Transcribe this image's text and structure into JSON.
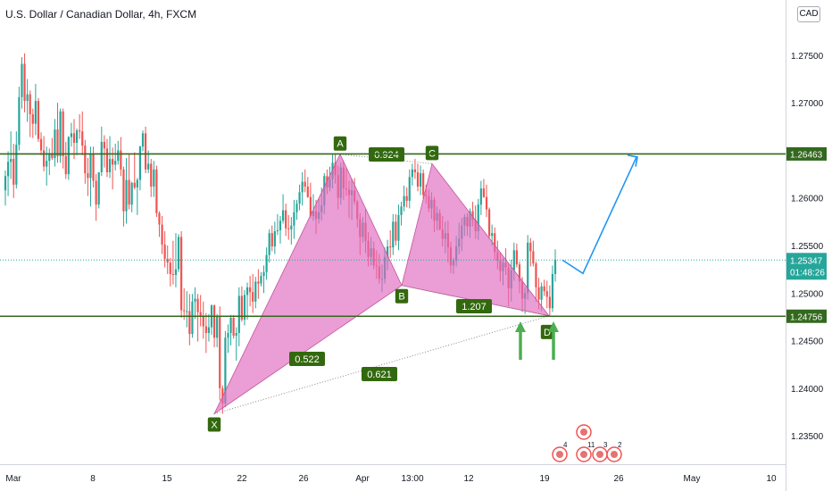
{
  "header": {
    "title": "U.S. Dollar / Canadian Dollar, 4h, FXCM",
    "currency_button": "CAD"
  },
  "chart_data": {
    "type": "candlestick",
    "symbol": "USDCAD",
    "timeframe": "4h",
    "y_axis": {
      "ticks": [
        "1.27500",
        "1.27000",
        "1.26000",
        "1.25500",
        "1.25000",
        "1.24500",
        "1.24000",
        "1.23500"
      ]
    },
    "x_axis": {
      "ticks": [
        "Mar",
        "8",
        "15",
        "22",
        "26",
        "Apr",
        "13:00",
        "12",
        "19",
        "26",
        "May",
        "10"
      ]
    },
    "price_labels": {
      "upper_level": "1.26463",
      "current_price": "1.25347",
      "countdown": "01:48:26",
      "lower_level": "1.24756"
    },
    "levels": [
      1.26463,
      1.24756
    ],
    "current_price": 1.25347,
    "harmonic_pattern": {
      "points": [
        {
          "label": "X",
          "price": 1.2373
        },
        {
          "label": "A",
          "price": 1.2646
        },
        {
          "label": "B",
          "price": 1.2508
        },
        {
          "label": "C",
          "price": 1.2636
        },
        {
          "label": "D",
          "price": 1.2476
        }
      ],
      "ratios": [
        "0.522",
        "0.924",
        "1.207",
        "0.621"
      ]
    },
    "candles": [
      [
        1.2608,
        1.2629,
        1.2592,
        1.2623
      ],
      [
        1.2623,
        1.2649,
        1.2602,
        1.2638
      ],
      [
        1.2638,
        1.267,
        1.262,
        1.2641
      ],
      [
        1.2641,
        1.2657,
        1.26,
        1.2614
      ],
      [
        1.2614,
        1.267,
        1.261,
        1.2656
      ],
      [
        1.2656,
        1.2717,
        1.265,
        1.2706
      ],
      [
        1.2706,
        1.2748,
        1.2694,
        1.2741
      ],
      [
        1.2741,
        1.2752,
        1.269,
        1.2702
      ],
      [
        1.2702,
        1.2725,
        1.268,
        1.2709
      ],
      [
        1.2709,
        1.2713,
        1.2664,
        1.2688
      ],
      [
        1.2688,
        1.2694,
        1.2663,
        1.2678
      ],
      [
        1.2678,
        1.272,
        1.2666,
        1.2702
      ],
      [
        1.2702,
        1.2705,
        1.2659,
        1.2662
      ],
      [
        1.2662,
        1.2669,
        1.2645,
        1.265
      ],
      [
        1.265,
        1.2665,
        1.2628,
        1.2633
      ],
      [
        1.2633,
        1.2654,
        1.2613,
        1.2639
      ],
      [
        1.2639,
        1.2652,
        1.2624,
        1.2646
      ],
      [
        1.2646,
        1.2663,
        1.264,
        1.2642
      ],
      [
        1.2642,
        1.2683,
        1.2633,
        1.2672
      ],
      [
        1.2672,
        1.27,
        1.2637,
        1.2644
      ],
      [
        1.2644,
        1.2694,
        1.2637,
        1.2691
      ],
      [
        1.2691,
        1.2694,
        1.2631,
        1.2644
      ],
      [
        1.2644,
        1.2659,
        1.262,
        1.2625
      ],
      [
        1.2625,
        1.2665,
        1.2619,
        1.2664
      ],
      [
        1.2664,
        1.2679,
        1.2654,
        1.2668
      ],
      [
        1.2668,
        1.2683,
        1.2641,
        1.2658
      ],
      [
        1.2658,
        1.2673,
        1.2645,
        1.2671
      ],
      [
        1.2671,
        1.2688,
        1.2662,
        1.267
      ],
      [
        1.267,
        1.2691,
        1.2645,
        1.2655
      ],
      [
        1.2655,
        1.2661,
        1.2615,
        1.2626
      ],
      [
        1.2626,
        1.2642,
        1.2602,
        1.2621
      ],
      [
        1.2621,
        1.2654,
        1.2591,
        1.2646
      ],
      [
        1.2646,
        1.2654,
        1.2611,
        1.2618
      ],
      [
        1.2618,
        1.2625,
        1.2576,
        1.2593
      ],
      [
        1.2593,
        1.2627,
        1.2589,
        1.2627
      ],
      [
        1.2627,
        1.2675,
        1.2623,
        1.2659
      ],
      [
        1.2659,
        1.2666,
        1.2632,
        1.2652
      ],
      [
        1.2652,
        1.2662,
        1.2622,
        1.2627
      ],
      [
        1.2627,
        1.2665,
        1.2621,
        1.2641
      ],
      [
        1.2641,
        1.2653,
        1.2609,
        1.2635
      ],
      [
        1.2635,
        1.2657,
        1.2629,
        1.2639
      ],
      [
        1.2639,
        1.266,
        1.2635,
        1.265
      ],
      [
        1.265,
        1.2664,
        1.2623,
        1.263
      ],
      [
        1.263,
        1.2633,
        1.257,
        1.2586
      ],
      [
        1.2586,
        1.2642,
        1.2573,
        1.2619
      ],
      [
        1.2619,
        1.2647,
        1.2588,
        1.2593
      ],
      [
        1.2593,
        1.2617,
        1.2585,
        1.2616
      ],
      [
        1.2616,
        1.2648,
        1.2609,
        1.2611
      ],
      [
        1.2611,
        1.2621,
        1.2582,
        1.2619
      ],
      [
        1.2619,
        1.2655,
        1.2608,
        1.2654
      ],
      [
        1.2654,
        1.2671,
        1.2649,
        1.2668
      ],
      [
        1.2668,
        1.2675,
        1.2626,
        1.263
      ],
      [
        1.263,
        1.265,
        1.2626,
        1.2636
      ],
      [
        1.2636,
        1.2641,
        1.2601,
        1.2612
      ],
      [
        1.2612,
        1.2639,
        1.2601,
        1.263
      ],
      [
        1.263,
        1.2634,
        1.258,
        1.2584
      ],
      [
        1.2584,
        1.2586,
        1.2559,
        1.2572
      ],
      [
        1.2572,
        1.2581,
        1.2541,
        1.2551
      ],
      [
        1.2551,
        1.2565,
        1.2527,
        1.2536
      ],
      [
        1.2536,
        1.255,
        1.252,
        1.2532
      ],
      [
        1.2532,
        1.2537,
        1.2507,
        1.252
      ],
      [
        1.252,
        1.2555,
        1.2509,
        1.2519
      ],
      [
        1.2519,
        1.2563,
        1.2506,
        1.2525
      ],
      [
        1.2525,
        1.2562,
        1.2522,
        1.2559
      ],
      [
        1.2559,
        1.2565,
        1.2474,
        1.2482
      ],
      [
        1.2482,
        1.2505,
        1.2472,
        1.2481
      ],
      [
        1.2481,
        1.2502,
        1.2464,
        1.2481
      ],
      [
        1.2481,
        1.2499,
        1.2445,
        1.2457
      ],
      [
        1.2457,
        1.2499,
        1.2453,
        1.2491
      ],
      [
        1.2491,
        1.2506,
        1.2473,
        1.2494
      ],
      [
        1.2494,
        1.2499,
        1.2449,
        1.248
      ],
      [
        1.248,
        1.2498,
        1.2465,
        1.2476
      ],
      [
        1.2476,
        1.2491,
        1.2452,
        1.2465
      ],
      [
        1.2465,
        1.2479,
        1.2437,
        1.2458
      ],
      [
        1.2458,
        1.2478,
        1.2449,
        1.2464
      ],
      [
        1.2464,
        1.2488,
        1.2456,
        1.2487
      ],
      [
        1.2487,
        1.2488,
        1.2443,
        1.2453
      ],
      [
        1.2453,
        1.2478,
        1.2443,
        1.2475
      ],
      [
        1.2475,
        1.2486,
        1.2387,
        1.24
      ],
      [
        1.24,
        1.2403,
        1.2373,
        1.2384
      ],
      [
        1.2384,
        1.246,
        1.238,
        1.2453
      ],
      [
        1.2453,
        1.2467,
        1.2437,
        1.2458
      ],
      [
        1.2458,
        1.2477,
        1.2445,
        1.2474
      ],
      [
        1.2474,
        1.2477,
        1.2452,
        1.2455
      ],
      [
        1.2455,
        1.2464,
        1.2429,
        1.2458
      ],
      [
        1.2458,
        1.2506,
        1.2444,
        1.2497
      ],
      [
        1.2497,
        1.2507,
        1.247,
        1.2472
      ],
      [
        1.2472,
        1.2503,
        1.2466,
        1.2498
      ],
      [
        1.2498,
        1.2511,
        1.2472,
        1.2506
      ],
      [
        1.2506,
        1.2518,
        1.2486,
        1.2501
      ],
      [
        1.2501,
        1.252,
        1.2479,
        1.2491
      ],
      [
        1.2491,
        1.2517,
        1.2484,
        1.2512
      ],
      [
        1.2512,
        1.2525,
        1.2494,
        1.251
      ],
      [
        1.251,
        1.2522,
        1.2507,
        1.2518
      ],
      [
        1.2518,
        1.2529,
        1.25,
        1.2522
      ],
      [
        1.2522,
        1.2548,
        1.2514,
        1.254
      ],
      [
        1.254,
        1.2567,
        1.2532,
        1.2563
      ],
      [
        1.2563,
        1.2571,
        1.2544,
        1.2549
      ],
      [
        1.2549,
        1.2575,
        1.2541,
        1.2565
      ],
      [
        1.2565,
        1.2583,
        1.2561,
        1.2566
      ],
      [
        1.2566,
        1.2581,
        1.2552,
        1.2576
      ],
      [
        1.2576,
        1.2604,
        1.2573,
        1.2587
      ],
      [
        1.2587,
        1.2594,
        1.256,
        1.2568
      ],
      [
        1.2568,
        1.2582,
        1.2556,
        1.2567
      ],
      [
        1.2567,
        1.258,
        1.2551,
        1.2571
      ],
      [
        1.2571,
        1.2598,
        1.2557,
        1.2585
      ],
      [
        1.2585,
        1.2598,
        1.2577,
        1.2594
      ],
      [
        1.2594,
        1.2614,
        1.2587,
        1.2606
      ],
      [
        1.2606,
        1.2627,
        1.2592,
        1.2617
      ],
      [
        1.2617,
        1.263,
        1.2606,
        1.2612
      ],
      [
        1.2612,
        1.2622,
        1.26,
        1.2601
      ],
      [
        1.2601,
        1.2616,
        1.2579,
        1.2581
      ],
      [
        1.2581,
        1.2604,
        1.2576,
        1.2586
      ],
      [
        1.2586,
        1.2598,
        1.2562,
        1.2578
      ],
      [
        1.2578,
        1.2599,
        1.2573,
        1.2585
      ],
      [
        1.2585,
        1.2611,
        1.2576,
        1.2592
      ],
      [
        1.2592,
        1.2626,
        1.2583,
        1.2623
      ],
      [
        1.2623,
        1.263,
        1.2604,
        1.2611
      ],
      [
        1.2611,
        1.2633,
        1.2607,
        1.262
      ],
      [
        1.262,
        1.2646,
        1.261,
        1.2637
      ],
      [
        1.2637,
        1.2647,
        1.2615,
        1.2624
      ],
      [
        1.2624,
        1.2634,
        1.2588,
        1.26
      ],
      [
        1.26,
        1.2637,
        1.2593,
        1.2632
      ],
      [
        1.2632,
        1.2639,
        1.2598,
        1.261
      ],
      [
        1.261,
        1.2631,
        1.2602,
        1.2609
      ],
      [
        1.2609,
        1.2618,
        1.2579,
        1.2603
      ],
      [
        1.2603,
        1.262,
        1.2577,
        1.2608
      ],
      [
        1.2608,
        1.2621,
        1.2593,
        1.2596
      ],
      [
        1.2596,
        1.2598,
        1.2569,
        1.2578
      ],
      [
        1.2578,
        1.2584,
        1.254,
        1.2559
      ],
      [
        1.2559,
        1.258,
        1.2553,
        1.2574
      ],
      [
        1.2574,
        1.2588,
        1.2542,
        1.2555
      ],
      [
        1.2555,
        1.2564,
        1.2528,
        1.2538
      ],
      [
        1.2538,
        1.2559,
        1.2529,
        1.2547
      ],
      [
        1.2547,
        1.2554,
        1.2525,
        1.2529
      ],
      [
        1.2529,
        1.2545,
        1.2515,
        1.2528
      ],
      [
        1.2528,
        1.2541,
        1.251,
        1.2515
      ],
      [
        1.2515,
        1.253,
        1.2501,
        1.2515
      ],
      [
        1.2515,
        1.2548,
        1.251,
        1.2538
      ],
      [
        1.2538,
        1.2556,
        1.2524,
        1.2549
      ],
      [
        1.2549,
        1.2566,
        1.2537,
        1.2548
      ],
      [
        1.2548,
        1.2583,
        1.254,
        1.2575
      ],
      [
        1.2575,
        1.2583,
        1.255,
        1.2555
      ],
      [
        1.2555,
        1.2593,
        1.2545,
        1.2582
      ],
      [
        1.2582,
        1.2596,
        1.2571,
        1.2591
      ],
      [
        1.2591,
        1.2613,
        1.2586,
        1.2602
      ],
      [
        1.2602,
        1.2611,
        1.259,
        1.2597
      ],
      [
        1.2597,
        1.263,
        1.2589,
        1.2622
      ],
      [
        1.2622,
        1.2636,
        1.2613,
        1.263
      ],
      [
        1.263,
        1.2641,
        1.262,
        1.2627
      ],
      [
        1.2627,
        1.2636,
        1.2607,
        1.2612
      ],
      [
        1.2612,
        1.2634,
        1.2603,
        1.2626
      ],
      [
        1.2626,
        1.263,
        1.2599,
        1.2603
      ],
      [
        1.2603,
        1.2614,
        1.2594,
        1.2602
      ],
      [
        1.2602,
        1.2609,
        1.2585,
        1.2589
      ],
      [
        1.2589,
        1.2606,
        1.2578,
        1.2598
      ],
      [
        1.2598,
        1.2601,
        1.2564,
        1.2576
      ],
      [
        1.2576,
        1.2591,
        1.2566,
        1.2584
      ],
      [
        1.2584,
        1.2588,
        1.2566,
        1.2567
      ],
      [
        1.2567,
        1.2581,
        1.2549,
        1.2557
      ],
      [
        1.2557,
        1.2575,
        1.2542,
        1.2563
      ],
      [
        1.2563,
        1.2576,
        1.2532,
        1.2548
      ],
      [
        1.2548,
        1.2554,
        1.2521,
        1.2529
      ],
      [
        1.2529,
        1.2537,
        1.252,
        1.2534
      ],
      [
        1.2534,
        1.256,
        1.2528,
        1.2549
      ],
      [
        1.2549,
        1.2574,
        1.2541,
        1.2557
      ],
      [
        1.2557,
        1.2579,
        1.2544,
        1.2571
      ],
      [
        1.2571,
        1.2583,
        1.256,
        1.258
      ],
      [
        1.258,
        1.2584,
        1.256,
        1.257
      ],
      [
        1.257,
        1.2589,
        1.2558,
        1.2586
      ],
      [
        1.2586,
        1.2596,
        1.257,
        1.2577
      ],
      [
        1.2577,
        1.2592,
        1.2557,
        1.2565
      ],
      [
        1.2565,
        1.2599,
        1.2556,
        1.2593
      ],
      [
        1.2593,
        1.2618,
        1.2582,
        1.261
      ],
      [
        1.261,
        1.262,
        1.26,
        1.2601
      ],
      [
        1.2601,
        1.2614,
        1.258,
        1.2588
      ],
      [
        1.2588,
        1.259,
        1.2557,
        1.256
      ],
      [
        1.256,
        1.2572,
        1.255,
        1.2563
      ],
      [
        1.2563,
        1.2569,
        1.2535,
        1.2543
      ],
      [
        1.2543,
        1.2555,
        1.2525,
        1.2534
      ],
      [
        1.2534,
        1.2543,
        1.2512,
        1.2523
      ],
      [
        1.2523,
        1.2537,
        1.2508,
        1.2532
      ],
      [
        1.2532,
        1.2547,
        1.2519,
        1.2527
      ],
      [
        1.2527,
        1.2531,
        1.2486,
        1.2505
      ],
      [
        1.2505,
        1.2535,
        1.2491,
        1.2524
      ],
      [
        1.2524,
        1.2553,
        1.2513,
        1.2545
      ],
      [
        1.2545,
        1.2552,
        1.2527,
        1.253
      ],
      [
        1.253,
        1.2533,
        1.25,
        1.2512
      ],
      [
        1.2512,
        1.2517,
        1.248,
        1.2494
      ],
      [
        1.2494,
        1.2506,
        1.2478,
        1.25
      ],
      [
        1.25,
        1.2561,
        1.2493,
        1.2553
      ],
      [
        1.2553,
        1.2558,
        1.2528,
        1.2544
      ],
      [
        1.2544,
        1.2555,
        1.2528,
        1.2531
      ],
      [
        1.2531,
        1.2533,
        1.2491,
        1.2506
      ],
      [
        1.2506,
        1.2516,
        1.2483,
        1.2493
      ],
      [
        1.2493,
        1.2511,
        1.2481,
        1.2507
      ],
      [
        1.2507,
        1.2514,
        1.2497,
        1.2502
      ],
      [
        1.2502,
        1.2513,
        1.2484,
        1.2496
      ],
      [
        1.2496,
        1.2508,
        1.2476,
        1.2484
      ],
      [
        1.2484,
        1.2529,
        1.248,
        1.252
      ],
      [
        1.252,
        1.2546,
        1.2512,
        1.2535
      ]
    ]
  },
  "calendar_events": {
    "counts": [
      "4",
      "11",
      "3",
      "2"
    ]
  }
}
